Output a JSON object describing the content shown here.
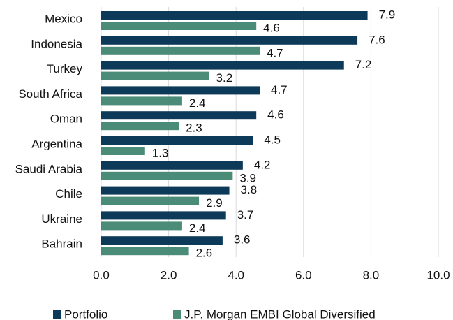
{
  "chart_data": {
    "type": "hbar",
    "categories": [
      "Mexico",
      "Indonesia",
      "Turkey",
      "South Africa",
      "Oman",
      "Argentina",
      "Saudi Arabia",
      "Chile",
      "Ukraine",
      "Bahrain"
    ],
    "series": [
      {
        "name": "Portfolio",
        "color": "#0e3a5a",
        "values": [
          7.9,
          7.6,
          7.2,
          4.7,
          4.6,
          4.5,
          4.2,
          3.8,
          3.7,
          3.6
        ]
      },
      {
        "name": "J.P. Morgan EMBI Global Diversified",
        "color": "#4b8c78",
        "values": [
          4.6,
          4.7,
          3.2,
          2.4,
          2.3,
          1.3,
          3.9,
          2.9,
          2.4,
          2.6
        ]
      }
    ],
    "xlim": [
      0,
      10
    ],
    "xticks": [
      {
        "value": 0,
        "label": "0.0"
      },
      {
        "value": 2,
        "label": "2.0"
      },
      {
        "value": 4,
        "label": "4.0"
      },
      {
        "value": 6,
        "label": "6.0"
      },
      {
        "value": 8,
        "label": "8.0"
      },
      {
        "value": 10,
        "label": "10.0"
      }
    ],
    "grid": true,
    "legend": "bottom"
  }
}
